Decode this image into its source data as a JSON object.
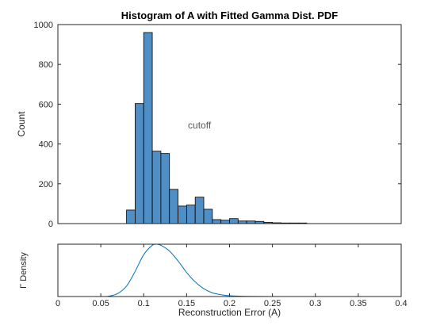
{
  "chart_data": [
    {
      "type": "bar",
      "title": "Histogram of A with Fitted Gamma Dist. PDF",
      "xlabel": "",
      "ylabel": "Count",
      "xlim": [
        0,
        0.4
      ],
      "ylim": [
        0,
        1000
      ],
      "yticks": [
        0,
        200,
        400,
        600,
        800,
        1000
      ],
      "bin_width": 0.01,
      "bin_edges_start": [
        0.08,
        0.09,
        0.1,
        0.11,
        0.12,
        0.13,
        0.14,
        0.15,
        0.16,
        0.17,
        0.18,
        0.19,
        0.2,
        0.21,
        0.22,
        0.23,
        0.24,
        0.25,
        0.26,
        0.27,
        0.28
      ],
      "values": [
        68,
        603,
        960,
        364,
        352,
        172,
        88,
        93,
        133,
        72,
        20,
        17,
        25,
        13,
        13,
        11,
        6,
        4,
        3,
        3,
        3
      ],
      "bar_color": "#4f8fc6",
      "bar_edge_color": "#000000",
      "annotations": [
        {
          "text": "cutoff",
          "x": 0.165,
          "y": 495
        }
      ]
    },
    {
      "type": "line",
      "title": "",
      "xlabel": "Reconstruction Error (A)",
      "ylabel": "Γ Density",
      "xlim": [
        0,
        0.4
      ],
      "xticks": [
        0,
        0.05,
        0.1,
        0.15,
        0.2,
        0.25,
        0.3,
        0.35,
        0.4
      ],
      "xtick_labels": [
        "0",
        "0.05",
        "0.1",
        "0.15",
        "0.2",
        "0.25",
        "0.3",
        "0.35",
        "0.4"
      ],
      "yticks": [],
      "line_color": "#0072bd",
      "series": [
        {
          "x": [
            0.0,
            0.05,
            0.06,
            0.07,
            0.08,
            0.09,
            0.1,
            0.11,
            0.115,
            0.12,
            0.13,
            0.14,
            0.15,
            0.16,
            0.17,
            0.18,
            0.19,
            0.2,
            0.22,
            0.25,
            0.3,
            0.4
          ],
          "values": [
            0.0,
            0.0,
            0.01,
            0.06,
            0.2,
            0.48,
            0.8,
            0.98,
            1.0,
            0.98,
            0.87,
            0.68,
            0.46,
            0.28,
            0.15,
            0.07,
            0.035,
            0.015,
            0.004,
            0.0,
            0.0,
            0.0
          ]
        }
      ]
    }
  ]
}
